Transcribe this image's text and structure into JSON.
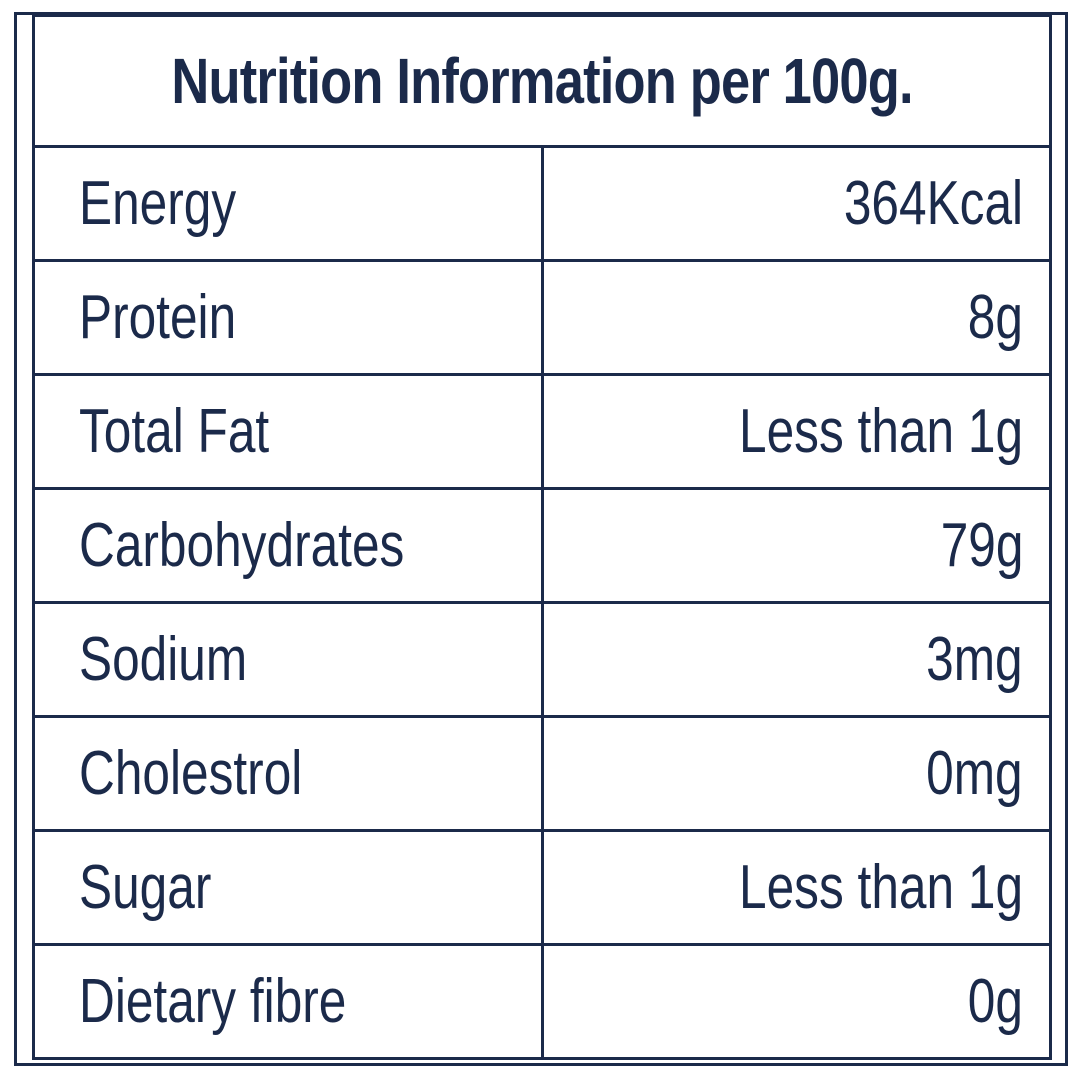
{
  "table": {
    "title": "Nutrition Information per 100g.",
    "rows": [
      {
        "label": "Energy",
        "value": "364Kcal"
      },
      {
        "label": "Protein",
        "value": "8g"
      },
      {
        "label": "Total Fat",
        "value": "Less than 1g"
      },
      {
        "label": "Carbohydrates",
        "value": "79g"
      },
      {
        "label": "Sodium",
        "value": "3mg"
      },
      {
        "label": "Cholestrol",
        "value": "0mg"
      },
      {
        "label": "Sugar",
        "value": "Less than 1g"
      },
      {
        "label": "Dietary fibre",
        "value": "0g"
      }
    ]
  },
  "colors": {
    "text": "#1b2a4a",
    "border": "#1b2a4a",
    "background": "#ffffff"
  }
}
